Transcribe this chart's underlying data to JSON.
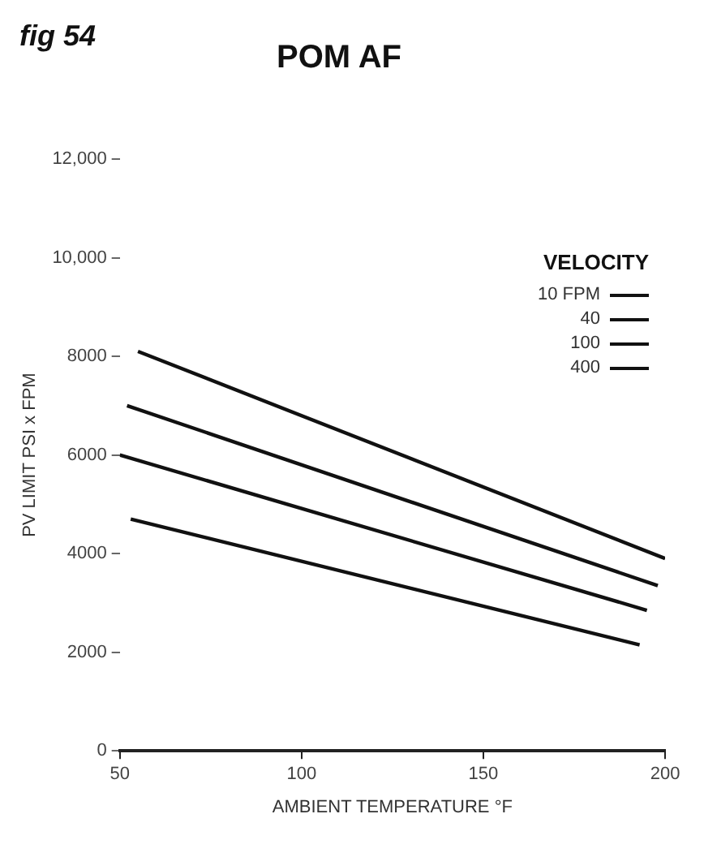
{
  "chart_data": {
    "type": "line",
    "title": "POM AF",
    "xlabel": "AMBIENT TEMPERATURE °F",
    "ylabel": "PV LIMIT PSI x FPM",
    "legend_title": "VELOCITY",
    "annotations": [
      "fig 54"
    ],
    "xlim": [
      50,
      200
    ],
    "xticks": [
      50,
      100,
      150,
      200
    ],
    "ylim": [
      0,
      12000
    ],
    "yticks": [
      {
        "value": 0,
        "label": "0"
      },
      {
        "value": 2000,
        "label": "2000"
      },
      {
        "value": 4000,
        "label": "4000"
      },
      {
        "value": 6000,
        "label": "6000"
      },
      {
        "value": 8000,
        "label": "8000"
      },
      {
        "value": 10000,
        "label": "10,000"
      },
      {
        "value": 12000,
        "label": "12,000"
      }
    ],
    "grid": false,
    "legend": "top right",
    "marker": "none",
    "line_style": "solid",
    "series": [
      {
        "name": "10 FPM",
        "color": "#111111",
        "x": [
          55,
          200
        ],
        "values": [
          8100,
          3900
        ]
      },
      {
        "name": "40",
        "color": "#111111",
        "x": [
          52,
          198
        ],
        "values": [
          7000,
          3350
        ]
      },
      {
        "name": "100",
        "color": "#111111",
        "x": [
          50,
          195
        ],
        "values": [
          6000,
          2850
        ]
      },
      {
        "name": "400",
        "color": "#111111",
        "x": [
          53,
          193
        ],
        "values": [
          4700,
          2150
        ]
      }
    ]
  }
}
